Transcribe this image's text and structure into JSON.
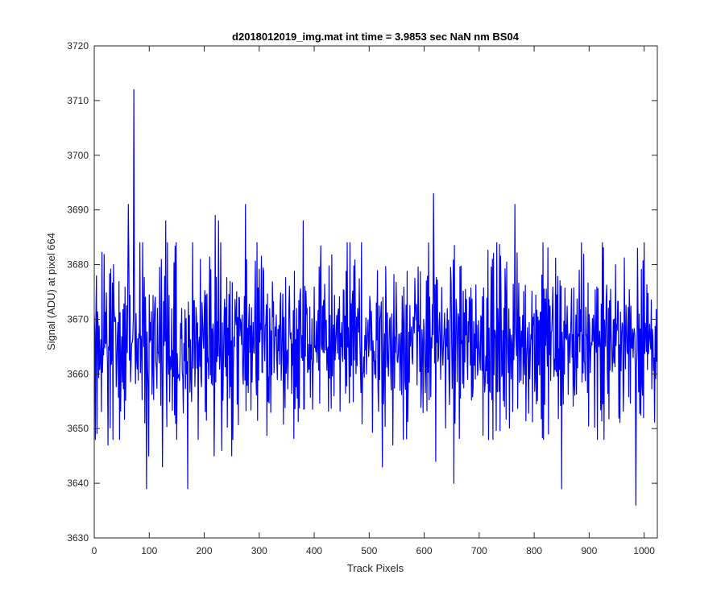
{
  "chart_data": {
    "type": "line",
    "title": "d2018012019_img.mat int time = 3.9853 sec  NaN nm BS04",
    "xlabel": "Track Pixels",
    "ylabel": "Signal (ADU) at pixel 664",
    "xlim": [
      0,
      1024
    ],
    "ylim": [
      3630,
      3720
    ],
    "xticks": [
      0,
      100,
      200,
      300,
      400,
      500,
      600,
      700,
      800,
      900,
      1000
    ],
    "yticks": [
      3630,
      3640,
      3650,
      3660,
      3670,
      3680,
      3690,
      3700,
      3710,
      3720
    ],
    "grid": false,
    "legend": "none",
    "line_color": "#0000ff",
    "sample_count": 1024,
    "series": [
      {
        "notable_points": [
          {
            "x": 2,
            "y": 3648
          },
          {
            "x": 25,
            "y": 3647
          },
          {
            "x": 62,
            "y": 3691
          },
          {
            "x": 72,
            "y": 3712
          },
          {
            "x": 95,
            "y": 3639
          },
          {
            "x": 99,
            "y": 3645
          },
          {
            "x": 124,
            "y": 3643
          },
          {
            "x": 130,
            "y": 3688
          },
          {
            "x": 170,
            "y": 3639
          },
          {
            "x": 218,
            "y": 3645
          },
          {
            "x": 220,
            "y": 3689
          },
          {
            "x": 226,
            "y": 3688
          },
          {
            "x": 232,
            "y": 3646
          },
          {
            "x": 250,
            "y": 3645
          },
          {
            "x": 275,
            "y": 3691
          },
          {
            "x": 380,
            "y": 3688
          },
          {
            "x": 524,
            "y": 3643
          },
          {
            "x": 543,
            "y": 3647
          },
          {
            "x": 617,
            "y": 3693
          },
          {
            "x": 621,
            "y": 3644
          },
          {
            "x": 654,
            "y": 3640
          },
          {
            "x": 765,
            "y": 3691
          },
          {
            "x": 850,
            "y": 3639
          },
          {
            "x": 985,
            "y": 3636
          },
          {
            "x": 988,
            "y": 3683
          },
          {
            "x": 1000,
            "y": 3684
          }
        ]
      }
    ]
  }
}
